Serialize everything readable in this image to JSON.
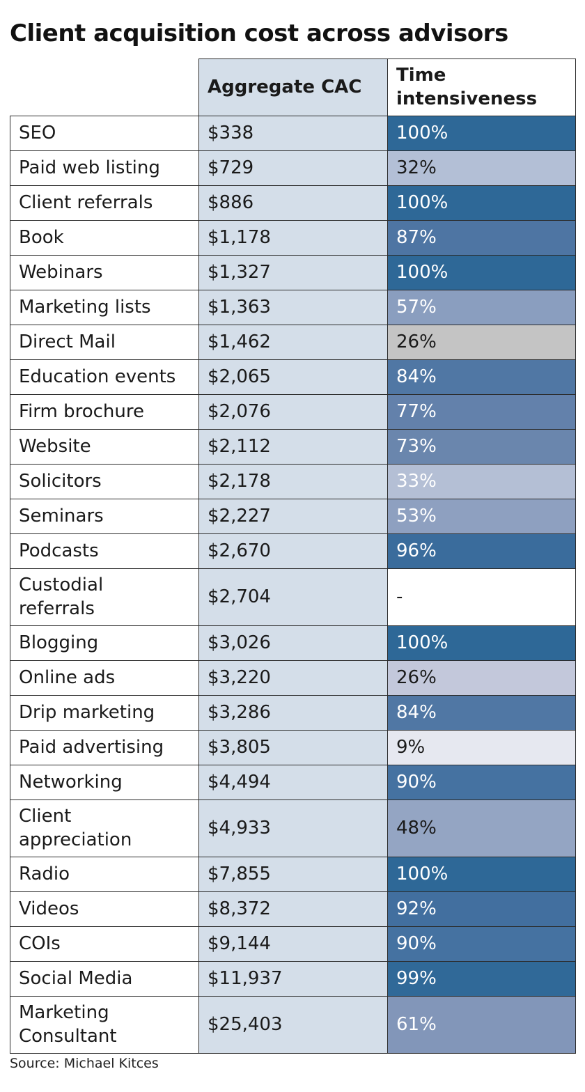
{
  "title": "Client acquisition cost across advisors",
  "source": "Source: Michael Kitces",
  "columns": {
    "name": "",
    "cac": "Aggregate CAC",
    "time": "Time intensiveness"
  },
  "chart_data": {
    "type": "table",
    "title": "Client acquisition cost across advisors",
    "columns": [
      "",
      "Aggregate CAC",
      "Time intensiveness"
    ],
    "rows": [
      {
        "name": "SEO",
        "cac": "$338",
        "time": "100%",
        "time_value": 1.0,
        "bg": "#2e6897",
        "fg": "#ffffff"
      },
      {
        "name": "Paid web listing",
        "cac": "$729",
        "time": "32%",
        "time_value": 0.32,
        "bg": "#b3bfd6",
        "fg": "#1a1a1a"
      },
      {
        "name": "Client referrals",
        "cac": "$886",
        "time": "100%",
        "time_value": 1.0,
        "bg": "#2e6897",
        "fg": "#ffffff"
      },
      {
        "name": "Book",
        "cac": "$1,178",
        "time": "87%",
        "time_value": 0.87,
        "bg": "#4e75a3",
        "fg": "#ffffff"
      },
      {
        "name": "Webinars",
        "cac": "$1,327",
        "time": "100%",
        "time_value": 1.0,
        "bg": "#2e6897",
        "fg": "#ffffff"
      },
      {
        "name": "Marketing lists",
        "cac": "$1,363",
        "time": "57%",
        "time_value": 0.57,
        "bg": "#8a9ebf",
        "fg": "#ffffff"
      },
      {
        "name": "Direct Mail",
        "cac": "$1,462",
        "time": "26%",
        "time_value": 0.26,
        "bg": "#c4c4c4",
        "fg": "#1a1a1a"
      },
      {
        "name": "Education events",
        "cac": "$2,065",
        "time": "84%",
        "time_value": 0.84,
        "bg": "#5077a4",
        "fg": "#ffffff"
      },
      {
        "name": "Firm brochure",
        "cac": "$2,076",
        "time": "77%",
        "time_value": 0.77,
        "bg": "#6381ab",
        "fg": "#ffffff"
      },
      {
        "name": "Website",
        "cac": "$2,112",
        "time": "73%",
        "time_value": 0.73,
        "bg": "#6a86ad",
        "fg": "#ffffff"
      },
      {
        "name": "Solicitors",
        "cac": "$2,178",
        "time": "33%",
        "time_value": 0.33,
        "bg": "#b4bfd5",
        "fg": "#ffffff"
      },
      {
        "name": "Seminars",
        "cac": "$2,227",
        "time": "53%",
        "time_value": 0.53,
        "bg": "#8ea0c0",
        "fg": "#ffffff"
      },
      {
        "name": "Podcasts",
        "cac": "$2,670",
        "time": "96%",
        "time_value": 0.96,
        "bg": "#3a6c9c",
        "fg": "#ffffff"
      },
      {
        "name": "Custodial referrals",
        "cac": "$2,704",
        "time": "-",
        "time_value": null,
        "bg": "#ffffff",
        "fg": "#1a1a1a",
        "tall": true
      },
      {
        "name": "Blogging",
        "cac": "$3,026",
        "time": "100%",
        "time_value": 1.0,
        "bg": "#2e6897",
        "fg": "#ffffff"
      },
      {
        "name": "Online ads",
        "cac": "$3,220",
        "time": "26%",
        "time_value": 0.26,
        "bg": "#c3c8db",
        "fg": "#1a1a1a"
      },
      {
        "name": "Drip marketing",
        "cac": "$3,286",
        "time": "84%",
        "time_value": 0.84,
        "bg": "#5077a4",
        "fg": "#ffffff"
      },
      {
        "name": "Paid advertising",
        "cac": "$3,805",
        "time": "9%",
        "time_value": 0.09,
        "bg": "#e6e8f0",
        "fg": "#1a1a1a"
      },
      {
        "name": "Networking",
        "cac": "$4,494",
        "time": "90%",
        "time_value": 0.9,
        "bg": "#4572a1",
        "fg": "#ffffff"
      },
      {
        "name": "Client appreciation",
        "cac": "$4,933",
        "time": "48%",
        "time_value": 0.48,
        "bg": "#94a5c3",
        "fg": "#1a1a1a",
        "tall": true
      },
      {
        "name": "Radio",
        "cac": "$7,855",
        "time": "100%",
        "time_value": 1.0,
        "bg": "#2e6897",
        "fg": "#ffffff"
      },
      {
        "name": "Videos",
        "cac": "$8,372",
        "time": "92%",
        "time_value": 0.92,
        "bg": "#426f9f",
        "fg": "#ffffff"
      },
      {
        "name": "COIs",
        "cac": "$9,144",
        "time": "90%",
        "time_value": 0.9,
        "bg": "#4572a1",
        "fg": "#ffffff"
      },
      {
        "name": "Social Media",
        "cac": "$11,937",
        "time": "99%",
        "time_value": 0.99,
        "bg": "#306998",
        "fg": "#ffffff"
      },
      {
        "name": "Marketing Consultant",
        "cac": "$25,403",
        "time": "61%",
        "time_value": 0.61,
        "bg": "#8296b9",
        "fg": "#ffffff",
        "tall": true
      }
    ]
  }
}
